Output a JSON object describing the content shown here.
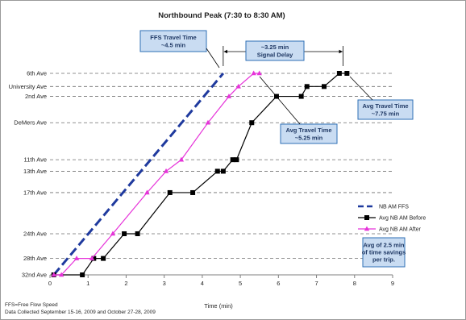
{
  "chart_data": {
    "type": "line",
    "title": "Northbound Peak (7:30 to 8:30 AM)",
    "xlabel": "Time (min)",
    "ylabel": "",
    "xlim": [
      0,
      9
    ],
    "x_ticks": [
      "0",
      "1",
      "2",
      "3",
      "4",
      "5",
      "6",
      "7",
      "8",
      "9"
    ],
    "y_stations": [
      {
        "name": "32nd Ave",
        "pos": 0
      },
      {
        "name": "28th Ave",
        "pos": 1
      },
      {
        "name": "24th Ave",
        "pos": 2.5
      },
      {
        "name": "17th Ave",
        "pos": 5
      },
      {
        "name": "13th Ave",
        "pos": 6.3
      },
      {
        "name": "11th Ave",
        "pos": 7
      },
      {
        "name": "DeMers Ave",
        "pos": 9.25
      },
      {
        "name": "2nd Ave",
        "pos": 10.85
      },
      {
        "name": "University Ave",
        "pos": 11.45
      },
      {
        "name": "6th Ave",
        "pos": 12.25
      }
    ],
    "series": [
      {
        "name": "NB AM FFS",
        "color": "#1f3a9e",
        "style": "dash",
        "marker": "none",
        "points": [
          [
            0.1,
            0
          ],
          [
            4.55,
            12.25
          ]
        ]
      },
      {
        "name": "Avg NB AM Before",
        "color": "#000000",
        "style": "solid",
        "marker": "square",
        "points": [
          [
            0.1,
            0
          ],
          [
            0.85,
            0
          ],
          [
            1.15,
            1
          ],
          [
            1.4,
            1
          ],
          [
            1.95,
            2.5
          ],
          [
            2.3,
            2.5
          ],
          [
            3.15,
            5
          ],
          [
            3.75,
            5
          ],
          [
            4.4,
            6.3
          ],
          [
            4.55,
            6.3
          ],
          [
            4.8,
            7
          ],
          [
            4.9,
            7
          ],
          [
            5.3,
            9.25
          ],
          [
            5.95,
            10.85
          ],
          [
            6.6,
            10.85
          ],
          [
            6.75,
            11.45
          ],
          [
            7.2,
            11.45
          ],
          [
            7.6,
            12.25
          ],
          [
            7.8,
            12.25
          ]
        ]
      },
      {
        "name": "Avg NB AM After",
        "color": "#e633d9",
        "style": "solid",
        "marker": "triangle",
        "points": [
          [
            0.1,
            0
          ],
          [
            0.3,
            0
          ],
          [
            0.7,
            1
          ],
          [
            1.1,
            1
          ],
          [
            1.65,
            2.5
          ],
          [
            2.55,
            5
          ],
          [
            3.05,
            6.3
          ],
          [
            3.45,
            7
          ],
          [
            4.15,
            9.25
          ],
          [
            4.7,
            10.85
          ],
          [
            4.95,
            11.45
          ],
          [
            5.35,
            12.25
          ],
          [
            5.5,
            12.25
          ]
        ]
      }
    ],
    "annotations": {
      "ffs_label": "FFS Travel Time\n~4.5 min",
      "signal_delay": "~3.25 min\nSignal Delay",
      "avg_after": "Avg Travel Time\n~5.25 min",
      "avg_before": "Avg Travel Time\n~7.75 min",
      "savings": "Avg  of 2.5 min\nof time savings\nper trip."
    },
    "legend": {
      "placement": "right",
      "labels": [
        "NB AM FFS",
        "Avg NB AM Before",
        "Avg NB AM After"
      ]
    },
    "footnotes": [
      "FFS=Free Flow Speed",
      "Data Collected September 15-16, 2009 and October 27-28, 2009"
    ],
    "grid": "horizontal dashed"
  },
  "colors": {
    "callout_fill": "#c9dcf2",
    "callout_border": "#2e6fb6",
    "callout_text": "#1f3864"
  }
}
